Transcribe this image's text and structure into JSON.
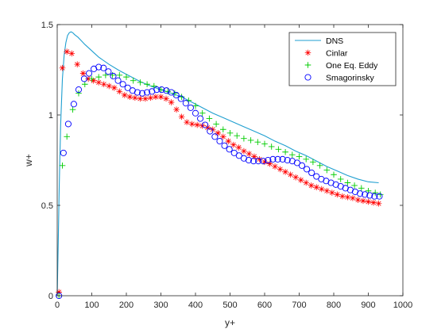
{
  "chart_data": {
    "type": "line",
    "title": "",
    "xlabel": "y+",
    "ylabel": "w+",
    "xlim": [
      0,
      1000
    ],
    "ylim": [
      0,
      1.5
    ],
    "xticks": [
      0,
      100,
      200,
      300,
      400,
      500,
      600,
      700,
      800,
      900,
      1000
    ],
    "xtick_labels": [
      "0",
      "100",
      "200",
      "300",
      "400",
      "500",
      "600",
      "700",
      "800",
      "900",
      "1000"
    ],
    "yticks": [
      0,
      0.5,
      1,
      1.5
    ],
    "ytick_labels": [
      "0",
      "0.5",
      "1",
      "1.5"
    ],
    "grid": false,
    "legend_position": "top-right",
    "series": [
      {
        "name": "DNS",
        "style": "line",
        "color": "#1f9fd0",
        "x": [
          0,
          3,
          6,
          10,
          15,
          20,
          25,
          30,
          35,
          40,
          45,
          50,
          60,
          70,
          80,
          100,
          120,
          150,
          180,
          210,
          240,
          270,
          300,
          330,
          360,
          390,
          420,
          450,
          480,
          510,
          540,
          570,
          600,
          630,
          660,
          690,
          720,
          750,
          780,
          810,
          840,
          870,
          900,
          930
        ],
        "y": [
          0,
          0.3,
          0.62,
          0.95,
          1.2,
          1.33,
          1.4,
          1.44,
          1.455,
          1.46,
          1.455,
          1.445,
          1.43,
          1.41,
          1.39,
          1.355,
          1.32,
          1.28,
          1.245,
          1.215,
          1.185,
          1.16,
          1.14,
          1.12,
          1.1,
          1.07,
          1.04,
          1.01,
          0.985,
          0.96,
          0.935,
          0.91,
          0.885,
          0.855,
          0.83,
          0.8,
          0.775,
          0.745,
          0.715,
          0.69,
          0.665,
          0.645,
          0.63,
          0.625
        ]
      },
      {
        "name": "Cinlar",
        "style": "asterisk",
        "color": "#ff0000",
        "x": [
          5,
          15,
          28,
          42,
          58,
          75,
          90,
          105,
          120,
          135,
          150,
          165,
          180,
          195,
          210,
          225,
          240,
          255,
          270,
          285,
          300,
          315,
          330,
          345,
          360,
          375,
          390,
          405,
          420,
          435,
          450,
          465,
          480,
          495,
          510,
          525,
          540,
          555,
          570,
          585,
          600,
          615,
          630,
          645,
          660,
          675,
          690,
          705,
          720,
          735,
          750,
          765,
          780,
          795,
          810,
          825,
          840,
          855,
          870,
          885,
          900,
          915,
          930
        ],
        "y": [
          0.02,
          1.26,
          1.35,
          1.34,
          1.28,
          1.23,
          1.2,
          1.19,
          1.18,
          1.17,
          1.16,
          1.15,
          1.13,
          1.11,
          1.1,
          1.095,
          1.09,
          1.09,
          1.095,
          1.1,
          1.1,
          1.09,
          1.07,
          1.03,
          0.99,
          0.96,
          0.95,
          0.945,
          0.94,
          0.93,
          0.92,
          0.9,
          0.88,
          0.855,
          0.835,
          0.82,
          0.8,
          0.785,
          0.77,
          0.755,
          0.74,
          0.73,
          0.715,
          0.7,
          0.685,
          0.67,
          0.655,
          0.64,
          0.625,
          0.61,
          0.6,
          0.59,
          0.58,
          0.57,
          0.56,
          0.55,
          0.545,
          0.54,
          0.53,
          0.525,
          0.52,
          0.515,
          0.51
        ]
      },
      {
        "name": "One Eq. Eddy",
        "style": "plus",
        "color": "#00cc00",
        "x": [
          5,
          15,
          28,
          45,
          62,
          80,
          100,
          120,
          140,
          160,
          180,
          200,
          220,
          240,
          260,
          280,
          300,
          320,
          340,
          360,
          380,
          400,
          420,
          440,
          460,
          480,
          500,
          520,
          540,
          560,
          580,
          600,
          620,
          640,
          660,
          680,
          700,
          720,
          740,
          760,
          780,
          800,
          820,
          840,
          860,
          880,
          900,
          920,
          935
        ],
        "y": [
          0.0,
          0.72,
          0.88,
          1.03,
          1.12,
          1.17,
          1.2,
          1.21,
          1.22,
          1.22,
          1.22,
          1.21,
          1.19,
          1.18,
          1.17,
          1.16,
          1.14,
          1.13,
          1.12,
          1.1,
          1.08,
          1.05,
          1.01,
          0.98,
          0.95,
          0.92,
          0.9,
          0.885,
          0.87,
          0.86,
          0.85,
          0.84,
          0.825,
          0.81,
          0.795,
          0.78,
          0.77,
          0.755,
          0.74,
          0.72,
          0.695,
          0.67,
          0.645,
          0.625,
          0.61,
          0.595,
          0.58,
          0.57,
          0.56
        ]
      },
      {
        "name": "Smagorinsky",
        "style": "circle",
        "color": "#0000ff",
        "x": [
          5,
          18,
          32,
          48,
          62,
          78,
          92,
          106,
          120,
          134,
          148,
          162,
          176,
          190,
          204,
          218,
          232,
          246,
          260,
          274,
          288,
          302,
          316,
          330,
          344,
          358,
          372,
          386,
          400,
          414,
          428,
          442,
          456,
          470,
          484,
          498,
          512,
          526,
          540,
          554,
          568,
          582,
          596,
          610,
          624,
          638,
          652,
          666,
          680,
          694,
          708,
          722,
          736,
          750,
          764,
          778,
          792,
          806,
          820,
          834,
          848,
          862,
          876,
          890,
          904,
          918,
          932
        ],
        "y": [
          0.0,
          0.79,
          0.95,
          1.06,
          1.14,
          1.2,
          1.23,
          1.255,
          1.265,
          1.26,
          1.24,
          1.215,
          1.19,
          1.17,
          1.15,
          1.135,
          1.125,
          1.12,
          1.125,
          1.13,
          1.14,
          1.14,
          1.135,
          1.125,
          1.11,
          1.09,
          1.065,
          1.04,
          1.01,
          0.98,
          0.945,
          0.91,
          0.88,
          0.855,
          0.83,
          0.81,
          0.79,
          0.775,
          0.76,
          0.75,
          0.745,
          0.745,
          0.745,
          0.75,
          0.755,
          0.755,
          0.755,
          0.75,
          0.745,
          0.735,
          0.72,
          0.7,
          0.68,
          0.66,
          0.645,
          0.635,
          0.625,
          0.615,
          0.605,
          0.595,
          0.585,
          0.575,
          0.565,
          0.56,
          0.555,
          0.55,
          0.55
        ]
      }
    ]
  }
}
